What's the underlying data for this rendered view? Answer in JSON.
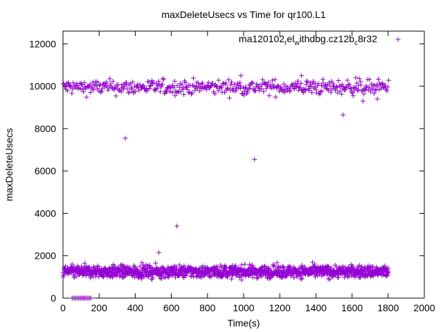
{
  "chart_data": {
    "type": "scatter",
    "title": "maxDeleteUsecs vs Time for qr100.L1",
    "xlabel": "Time(s)",
    "ylabel": "maxDeleteUsecs",
    "xlim": [
      0,
      2000
    ],
    "ylim": [
      0,
      12600
    ],
    "x_ticks": [
      "0",
      "200",
      "400",
      "600",
      "800",
      "1000",
      "1200",
      "1400",
      "1600",
      "1800",
      "2000"
    ],
    "y_ticks": [
      "0",
      "2000",
      "4000",
      "6000",
      "8000",
      "10000",
      "12000"
    ],
    "grid": false,
    "legend_position": "top-right",
    "marker": "+",
    "color": "#9400d3",
    "series": [
      {
        "name_parts": [
          "ma120102",
          "r",
          "el",
          "w",
          "ithdbg.cz12b",
          "c",
          "8r32"
        ],
        "bands": [
          {
            "label": "upper",
            "x_range": [
              0,
              1800
            ],
            "y_min": 9400,
            "y_max": 10500,
            "y_center": 9950
          },
          {
            "label": "lower",
            "x_range": [
              0,
              1800
            ],
            "y_min": 800,
            "y_max": 1700,
            "y_center": 1250
          },
          {
            "label": "zero",
            "x_range": [
              50,
              160
            ],
            "y_min": 0,
            "y_max": 0,
            "y_center": 0
          }
        ],
        "outliers": [
          {
            "x": 345,
            "y": 7550
          },
          {
            "x": 530,
            "y": 2150
          },
          {
            "x": 630,
            "y": 3400
          },
          {
            "x": 1060,
            "y": 6550
          },
          {
            "x": 1550,
            "y": 8650
          },
          {
            "x": 1660,
            "y": 9300
          },
          {
            "x": 1740,
            "y": 9400
          },
          {
            "x": 985,
            "y": 10500
          },
          {
            "x": 1320,
            "y": 10500
          },
          {
            "x": 1620,
            "y": 10400
          }
        ]
      }
    ]
  }
}
